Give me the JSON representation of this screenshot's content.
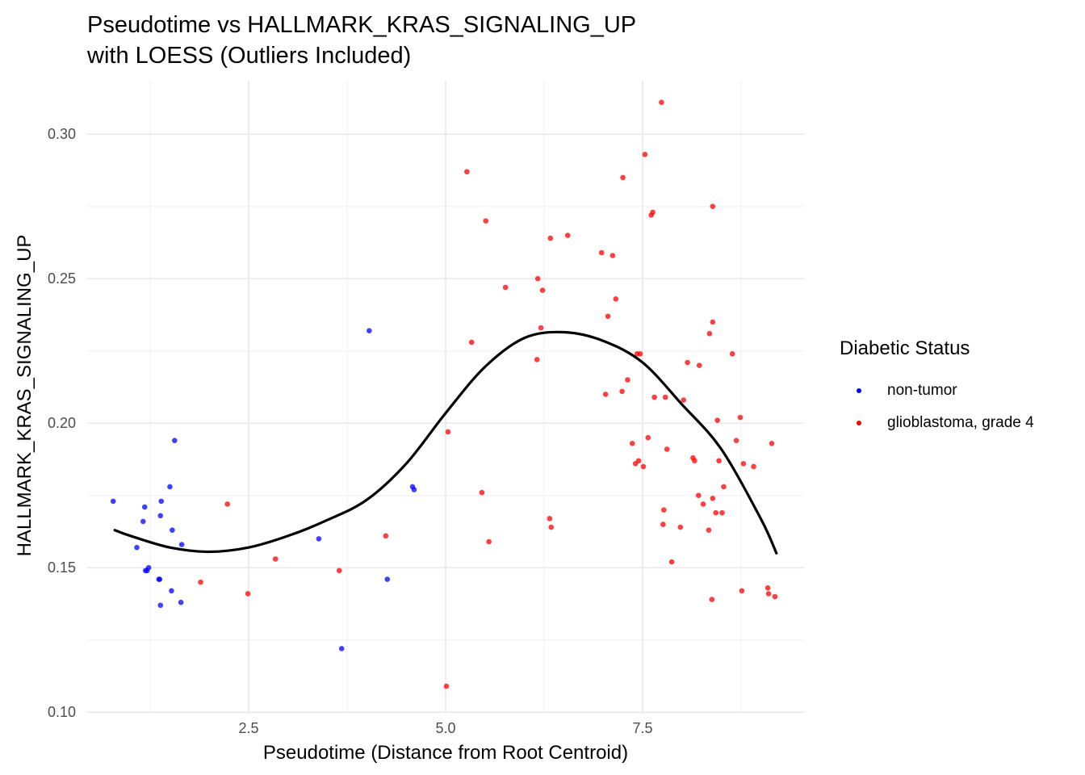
{
  "chart_data": {
    "type": "scatter",
    "title": "Pseudotime vs HALLMARK_KRAS_SIGNALING_UP",
    "subtitle": "with LOESS (Outliers Included)",
    "xlabel": "Pseudotime (Distance from Root Centroid)",
    "ylabel": "HALLMARK_KRAS_SIGNALING_UP",
    "xlim": [
      0.45,
      9.55
    ],
    "ylim": [
      0.0995,
      0.3185
    ],
    "xticks": [
      "2.5",
      "5.0",
      "7.5"
    ],
    "xtick_values": [
      2.5,
      5.0,
      7.5
    ],
    "yticks": [
      "0.10",
      "0.15",
      "0.20",
      "0.25",
      "0.30"
    ],
    "ytick_values": [
      0.1,
      0.15,
      0.2,
      0.25,
      0.3
    ],
    "grid": true,
    "legend_title": "Diabetic Status",
    "legend_position": "right",
    "series": [
      {
        "name": "non-tumor",
        "color": "#0000ff",
        "points": [
          [
            0.78,
            0.173
          ],
          [
            1.08,
            0.157
          ],
          [
            1.16,
            0.166
          ],
          [
            1.18,
            0.171
          ],
          [
            1.19,
            0.149
          ],
          [
            1.21,
            0.149
          ],
          [
            1.23,
            0.15
          ],
          [
            1.36,
            0.146
          ],
          [
            1.37,
            0.146
          ],
          [
            1.38,
            0.137
          ],
          [
            1.38,
            0.168
          ],
          [
            1.39,
            0.173
          ],
          [
            1.5,
            0.178
          ],
          [
            1.52,
            0.142
          ],
          [
            1.53,
            0.163
          ],
          [
            1.56,
            0.194
          ],
          [
            1.64,
            0.138
          ],
          [
            1.65,
            0.158
          ],
          [
            3.39,
            0.16
          ],
          [
            3.68,
            0.122
          ],
          [
            4.03,
            0.232
          ],
          [
            4.26,
            0.146
          ],
          [
            4.58,
            0.178
          ],
          [
            4.6,
            0.177
          ]
        ]
      },
      {
        "name": "glioblastoma, grade 4",
        "color": "#ff0000",
        "points": [
          [
            1.89,
            0.145
          ],
          [
            2.23,
            0.172
          ],
          [
            2.49,
            0.141
          ],
          [
            2.84,
            0.153
          ],
          [
            3.65,
            0.149
          ],
          [
            4.24,
            0.161
          ],
          [
            5.01,
            0.109
          ],
          [
            5.03,
            0.197
          ],
          [
            5.27,
            0.287
          ],
          [
            5.33,
            0.228
          ],
          [
            5.46,
            0.176
          ],
          [
            5.51,
            0.27
          ],
          [
            5.55,
            0.159
          ],
          [
            5.76,
            0.247
          ],
          [
            6.16,
            0.222
          ],
          [
            6.17,
            0.25
          ],
          [
            6.21,
            0.233
          ],
          [
            6.23,
            0.246
          ],
          [
            6.32,
            0.167
          ],
          [
            6.33,
            0.264
          ],
          [
            6.34,
            0.164
          ],
          [
            6.55,
            0.265
          ],
          [
            6.98,
            0.259
          ],
          [
            7.03,
            0.21
          ],
          [
            7.06,
            0.237
          ],
          [
            7.12,
            0.258
          ],
          [
            7.16,
            0.243
          ],
          [
            7.24,
            0.211
          ],
          [
            7.25,
            0.285
          ],
          [
            7.31,
            0.215
          ],
          [
            7.37,
            0.193
          ],
          [
            7.41,
            0.186
          ],
          [
            7.43,
            0.224
          ],
          [
            7.45,
            0.187
          ],
          [
            7.47,
            0.224
          ],
          [
            7.51,
            0.185
          ],
          [
            7.53,
            0.293
          ],
          [
            7.57,
            0.195
          ],
          [
            7.61,
            0.272
          ],
          [
            7.63,
            0.273
          ],
          [
            7.65,
            0.209
          ],
          [
            7.74,
            0.311
          ],
          [
            7.76,
            0.165
          ],
          [
            7.77,
            0.17
          ],
          [
            7.79,
            0.209
          ],
          [
            7.81,
            0.191
          ],
          [
            7.87,
            0.152
          ],
          [
            7.98,
            0.164
          ],
          [
            8.02,
            0.208
          ],
          [
            8.07,
            0.221
          ],
          [
            8.14,
            0.188
          ],
          [
            8.16,
            0.187
          ],
          [
            8.21,
            0.175
          ],
          [
            8.22,
            0.22
          ],
          [
            8.27,
            0.172
          ],
          [
            8.34,
            0.163
          ],
          [
            8.35,
            0.231
          ],
          [
            8.38,
            0.139
          ],
          [
            8.39,
            0.174
          ],
          [
            8.39,
            0.235
          ],
          [
            8.39,
            0.275
          ],
          [
            8.43,
            0.169
          ],
          [
            8.45,
            0.201
          ],
          [
            8.47,
            0.187
          ],
          [
            8.51,
            0.169
          ],
          [
            8.53,
            0.178
          ],
          [
            8.64,
            0.224
          ],
          [
            8.69,
            0.194
          ],
          [
            8.74,
            0.202
          ],
          [
            8.76,
            0.142
          ],
          [
            8.78,
            0.186
          ],
          [
            8.91,
            0.185
          ],
          [
            9.09,
            0.143
          ],
          [
            9.1,
            0.141
          ],
          [
            9.14,
            0.193
          ],
          [
            9.18,
            0.14
          ]
        ]
      }
    ],
    "loess": {
      "name": "LOESS",
      "color": "#000000",
      "x": [
        0.8,
        1.0,
        1.5,
        2.0,
        2.5,
        3.0,
        3.5,
        4.0,
        4.5,
        5.0,
        5.5,
        6.0,
        6.5,
        7.0,
        7.5,
        8.0,
        8.5,
        9.0,
        9.2
      ],
      "y": [
        0.163,
        0.161,
        0.157,
        0.1555,
        0.157,
        0.161,
        0.1665,
        0.1735,
        0.186,
        0.2035,
        0.2195,
        0.2295,
        0.2315,
        0.2285,
        0.221,
        0.2065,
        0.191,
        0.167,
        0.155
      ]
    }
  }
}
